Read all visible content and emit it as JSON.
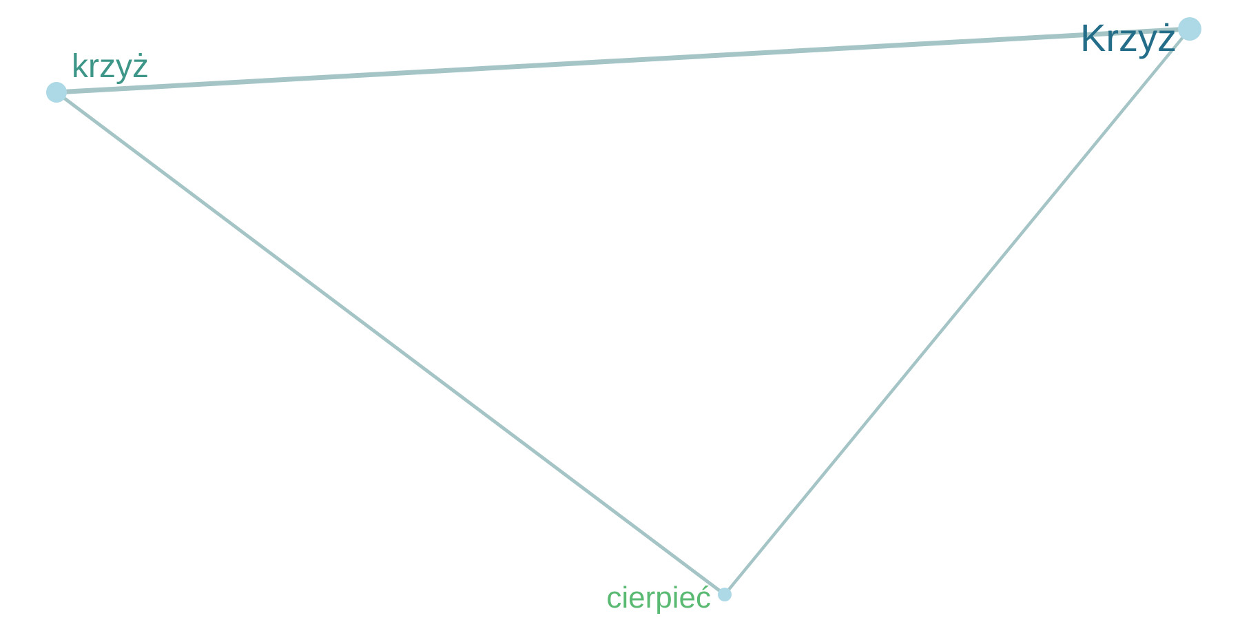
{
  "graph": {
    "nodes": [
      {
        "id": "krzyz_lower",
        "label": "krzyż",
        "label_color": "#3d9688"
      },
      {
        "id": "krzyz_upper",
        "label": "Krzyż",
        "label_color": "#236d89"
      },
      {
        "id": "cierpiec",
        "label": "cierpieć",
        "label_color": "#5aba73"
      }
    ],
    "edges": [
      {
        "source": "krzyz_lower",
        "target": "krzyz_upper"
      },
      {
        "source": "krzyz_lower",
        "target": "cierpiec"
      },
      {
        "source": "krzyz_upper",
        "target": "cierpiec"
      }
    ],
    "node_color": "#add8e6",
    "edge_color": "#a4c4c6"
  }
}
